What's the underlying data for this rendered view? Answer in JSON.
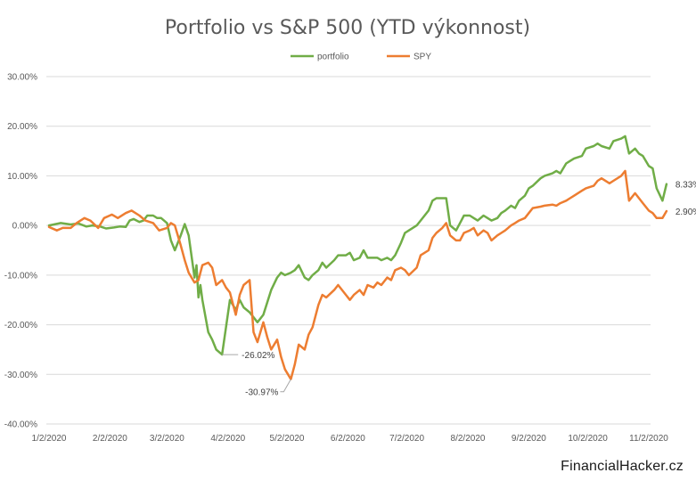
{
  "watermark": "FinancialHacker.cz",
  "chart_data": {
    "type": "line",
    "title": "Portfolio vs S&P 500 (YTD výkonnost)",
    "xlabel": "",
    "ylabel": "",
    "ylim": [
      -40,
      30
    ],
    "y_ticks": [
      30,
      20,
      10,
      0,
      -10,
      -20,
      -30,
      -40
    ],
    "y_tick_labels": [
      "30.00%",
      "20.00%",
      "10.00%",
      "0.00%",
      "-10.00%",
      "-20.00%",
      "-30.00%",
      "-40.00%"
    ],
    "x_tick_labels": [
      "1/2/2020",
      "2/2/2020",
      "3/2/2020",
      "4/2/2020",
      "5/2/2020",
      "6/2/2020",
      "7/2/2020",
      "8/2/2020",
      "9/2/2020",
      "10/2/2020",
      "11/2/2020"
    ],
    "x_tick_dates": [
      "2020-01-02",
      "2020-02-02",
      "2020-03-02",
      "2020-04-02",
      "2020-05-02",
      "2020-06-02",
      "2020-07-02",
      "2020-08-02",
      "2020-09-02",
      "2020-10-02",
      "2020-11-02"
    ],
    "xlim": [
      "2020-01-02",
      "2020-11-12"
    ],
    "grid": "horizontal",
    "legend_position": "top-center",
    "series": [
      {
        "name": "portfolio",
        "color": "#70AD47",
        "points": [
          [
            "2020-01-02",
            0.0
          ],
          [
            "2020-01-08",
            0.5
          ],
          [
            "2020-01-13",
            0.2
          ],
          [
            "2020-01-17",
            0.4
          ],
          [
            "2020-01-21",
            -0.2
          ],
          [
            "2020-01-24",
            0.0
          ],
          [
            "2020-01-28",
            -0.2
          ],
          [
            "2020-01-31",
            -0.6
          ],
          [
            "2020-02-04",
            -0.4
          ],
          [
            "2020-02-07",
            -0.2
          ],
          [
            "2020-02-10",
            -0.3
          ],
          [
            "2020-02-12",
            1.0
          ],
          [
            "2020-02-14",
            1.3
          ],
          [
            "2020-02-17",
            0.7
          ],
          [
            "2020-02-19",
            1.0
          ],
          [
            "2020-02-21",
            2.0
          ],
          [
            "2020-02-24",
            2.0
          ],
          [
            "2020-02-26",
            1.5
          ],
          [
            "2020-02-28",
            1.5
          ],
          [
            "2020-03-02",
            0.5
          ],
          [
            "2020-03-04",
            -3.0
          ],
          [
            "2020-03-06",
            -5.0
          ],
          [
            "2020-03-09",
            -2.0
          ],
          [
            "2020-03-11",
            0.3
          ],
          [
            "2020-03-13",
            -2.0
          ],
          [
            "2020-03-16",
            -10.5
          ],
          [
            "2020-03-17",
            -8.0
          ],
          [
            "2020-03-18",
            -14.5
          ],
          [
            "2020-03-19",
            -12.0
          ],
          [
            "2020-03-20",
            -15.0
          ],
          [
            "2020-03-23",
            -21.5
          ],
          [
            "2020-03-25",
            -23.0
          ],
          [
            "2020-03-27",
            -25.0
          ],
          [
            "2020-03-30",
            -26.02
          ],
          [
            "2020-04-01",
            -20.5
          ],
          [
            "2020-04-03",
            -15.0
          ],
          [
            "2020-04-06",
            -17.0
          ],
          [
            "2020-04-08",
            -15.0
          ],
          [
            "2020-04-10",
            -16.5
          ],
          [
            "2020-04-13",
            -17.5
          ],
          [
            "2020-04-15",
            -18.5
          ],
          [
            "2020-04-17",
            -19.5
          ],
          [
            "2020-04-20",
            -18.0
          ],
          [
            "2020-04-22",
            -15.5
          ],
          [
            "2020-04-24",
            -13.0
          ],
          [
            "2020-04-27",
            -10.5
          ],
          [
            "2020-04-29",
            -9.5
          ],
          [
            "2020-05-01",
            -10.0
          ],
          [
            "2020-05-04",
            -9.5
          ],
          [
            "2020-05-06",
            -9.0
          ],
          [
            "2020-05-08",
            -8.0
          ],
          [
            "2020-05-11",
            -10.5
          ],
          [
            "2020-05-13",
            -11.0
          ],
          [
            "2020-05-15",
            -10.0
          ],
          [
            "2020-05-18",
            -9.0
          ],
          [
            "2020-05-20",
            -7.5
          ],
          [
            "2020-05-22",
            -8.5
          ],
          [
            "2020-05-26",
            -7.0
          ],
          [
            "2020-05-28",
            -6.0
          ],
          [
            "2020-06-01",
            -6.0
          ],
          [
            "2020-06-03",
            -5.5
          ],
          [
            "2020-06-05",
            -7.0
          ],
          [
            "2020-06-08",
            -6.5
          ],
          [
            "2020-06-10",
            -5.0
          ],
          [
            "2020-06-12",
            -6.5
          ],
          [
            "2020-06-15",
            -6.5
          ],
          [
            "2020-06-17",
            -6.5
          ],
          [
            "2020-06-19",
            -7.0
          ],
          [
            "2020-06-22",
            -6.5
          ],
          [
            "2020-06-24",
            -7.0
          ],
          [
            "2020-06-26",
            -6.0
          ],
          [
            "2020-06-29",
            -3.5
          ],
          [
            "2020-07-01",
            -1.5
          ],
          [
            "2020-07-03",
            -1.0
          ],
          [
            "2020-07-07",
            0.0
          ],
          [
            "2020-07-09",
            1.0
          ],
          [
            "2020-07-13",
            3.0
          ],
          [
            "2020-07-15",
            5.0
          ],
          [
            "2020-07-17",
            5.5
          ],
          [
            "2020-07-20",
            5.5
          ],
          [
            "2020-07-22",
            5.5
          ],
          [
            "2020-07-24",
            0.0
          ],
          [
            "2020-07-27",
            -1.0
          ],
          [
            "2020-07-29",
            0.5
          ],
          [
            "2020-07-31",
            2.0
          ],
          [
            "2020-08-03",
            2.0
          ],
          [
            "2020-08-05",
            1.5
          ],
          [
            "2020-08-07",
            1.0
          ],
          [
            "2020-08-10",
            2.0
          ],
          [
            "2020-08-12",
            1.5
          ],
          [
            "2020-08-14",
            1.0
          ],
          [
            "2020-08-17",
            1.5
          ],
          [
            "2020-08-19",
            2.5
          ],
          [
            "2020-08-21",
            3.0
          ],
          [
            "2020-08-24",
            4.0
          ],
          [
            "2020-08-26",
            3.5
          ],
          [
            "2020-08-28",
            5.0
          ],
          [
            "2020-08-31",
            6.0
          ],
          [
            "2020-09-02",
            7.5
          ],
          [
            "2020-09-04",
            8.0
          ],
          [
            "2020-09-08",
            9.5
          ],
          [
            "2020-09-10",
            10.0
          ],
          [
            "2020-09-14",
            10.5
          ],
          [
            "2020-09-16",
            11.0
          ],
          [
            "2020-09-18",
            10.5
          ],
          [
            "2020-09-21",
            12.5
          ],
          [
            "2020-09-23",
            13.0
          ],
          [
            "2020-09-25",
            13.5
          ],
          [
            "2020-09-29",
            14.0
          ],
          [
            "2020-10-01",
            15.5
          ],
          [
            "2020-10-05",
            16.0
          ],
          [
            "2020-10-07",
            16.5
          ],
          [
            "2020-10-09",
            16.0
          ],
          [
            "2020-10-13",
            15.5
          ],
          [
            "2020-10-15",
            17.0
          ],
          [
            "2020-10-19",
            17.5
          ],
          [
            "2020-10-21",
            18.0
          ],
          [
            "2020-10-23",
            14.5
          ],
          [
            "2020-10-26",
            15.5
          ],
          [
            "2020-10-28",
            14.5
          ],
          [
            "2020-10-30",
            14.0
          ],
          [
            "2020-11-02",
            12.0
          ],
          [
            "2020-11-04",
            11.5
          ],
          [
            "2020-11-06",
            7.5
          ],
          [
            "2020-11-09",
            5.0
          ],
          [
            "2020-11-11",
            8.33
          ]
        ]
      },
      {
        "name": "SPY",
        "color": "#ED7D31",
        "points": [
          [
            "2020-01-02",
            -0.3
          ],
          [
            "2020-01-06",
            -1.0
          ],
          [
            "2020-01-09",
            -0.5
          ],
          [
            "2020-01-13",
            -0.5
          ],
          [
            "2020-01-16",
            0.5
          ],
          [
            "2020-01-20",
            1.5
          ],
          [
            "2020-01-23",
            1.0
          ],
          [
            "2020-01-27",
            -0.5
          ],
          [
            "2020-01-30",
            1.5
          ],
          [
            "2020-02-03",
            2.2
          ],
          [
            "2020-02-06",
            1.5
          ],
          [
            "2020-02-10",
            2.5
          ],
          [
            "2020-02-13",
            3.0
          ],
          [
            "2020-02-17",
            2.0
          ],
          [
            "2020-02-20",
            1.0
          ],
          [
            "2020-02-24",
            0.5
          ],
          [
            "2020-02-27",
            -1.0
          ],
          [
            "2020-03-02",
            -0.5
          ],
          [
            "2020-03-04",
            0.5
          ],
          [
            "2020-03-06",
            0.0
          ],
          [
            "2020-03-09",
            -4.0
          ],
          [
            "2020-03-11",
            -7.0
          ],
          [
            "2020-03-13",
            -9.5
          ],
          [
            "2020-03-16",
            -11.5
          ],
          [
            "2020-03-18",
            -11.0
          ],
          [
            "2020-03-20",
            -8.0
          ],
          [
            "2020-03-23",
            -7.5
          ],
          [
            "2020-03-25",
            -8.5
          ],
          [
            "2020-03-27",
            -12.0
          ],
          [
            "2020-03-30",
            -11.0
          ],
          [
            "2020-04-01",
            -12.5
          ],
          [
            "2020-04-03",
            -13.5
          ],
          [
            "2020-04-06",
            -18.0
          ],
          [
            "2020-04-08",
            -14.0
          ],
          [
            "2020-04-10",
            -12.0
          ],
          [
            "2020-04-13",
            -11.0
          ],
          [
            "2020-04-15",
            -21.5
          ],
          [
            "2020-04-17",
            -23.5
          ],
          [
            "2020-04-20",
            -19.5
          ],
          [
            "2020-04-22",
            -22.5
          ],
          [
            "2020-04-24",
            -25.0
          ],
          [
            "2020-04-27",
            -23.0
          ],
          [
            "2020-04-29",
            -26.5
          ],
          [
            "2020-05-01",
            -29.0
          ],
          [
            "2020-05-04",
            -30.97
          ],
          [
            "2020-05-06",
            -28.0
          ],
          [
            "2020-05-08",
            -24.0
          ],
          [
            "2020-05-11",
            -25.0
          ],
          [
            "2020-05-13",
            -22.0
          ],
          [
            "2020-05-15",
            -20.5
          ],
          [
            "2020-05-18",
            -16.0
          ],
          [
            "2020-05-20",
            -14.0
          ],
          [
            "2020-05-22",
            -14.5
          ],
          [
            "2020-05-26",
            -13.0
          ],
          [
            "2020-05-28",
            -12.0
          ],
          [
            "2020-06-01",
            -14.0
          ],
          [
            "2020-06-03",
            -15.0
          ],
          [
            "2020-06-05",
            -14.0
          ],
          [
            "2020-06-08",
            -13.0
          ],
          [
            "2020-06-10",
            -14.0
          ],
          [
            "2020-06-12",
            -12.0
          ],
          [
            "2020-06-15",
            -12.5
          ],
          [
            "2020-06-17",
            -11.5
          ],
          [
            "2020-06-19",
            -12.0
          ],
          [
            "2020-06-22",
            -10.5
          ],
          [
            "2020-06-24",
            -11.0
          ],
          [
            "2020-06-26",
            -9.0
          ],
          [
            "2020-06-29",
            -8.5
          ],
          [
            "2020-07-01",
            -9.0
          ],
          [
            "2020-07-03",
            -10.0
          ],
          [
            "2020-07-07",
            -8.5
          ],
          [
            "2020-07-09",
            -6.0
          ],
          [
            "2020-07-13",
            -5.0
          ],
          [
            "2020-07-15",
            -2.5
          ],
          [
            "2020-07-17",
            -1.5
          ],
          [
            "2020-07-20",
            -0.5
          ],
          [
            "2020-07-22",
            0.5
          ],
          [
            "2020-07-24",
            -2.0
          ],
          [
            "2020-07-27",
            -3.0
          ],
          [
            "2020-07-29",
            -3.0
          ],
          [
            "2020-07-31",
            -1.5
          ],
          [
            "2020-08-03",
            -1.0
          ],
          [
            "2020-08-05",
            -0.5
          ],
          [
            "2020-08-07",
            -2.0
          ],
          [
            "2020-08-10",
            -1.0
          ],
          [
            "2020-08-12",
            -1.5
          ],
          [
            "2020-08-14",
            -3.0
          ],
          [
            "2020-08-17",
            -2.0
          ],
          [
            "2020-08-19",
            -1.5
          ],
          [
            "2020-08-21",
            -1.0
          ],
          [
            "2020-08-24",
            0.0
          ],
          [
            "2020-08-26",
            0.5
          ],
          [
            "2020-08-28",
            1.0
          ],
          [
            "2020-08-31",
            1.5
          ],
          [
            "2020-09-02",
            2.5
          ],
          [
            "2020-09-04",
            3.5
          ],
          [
            "2020-09-08",
            3.8
          ],
          [
            "2020-09-10",
            4.0
          ],
          [
            "2020-09-14",
            4.2
          ],
          [
            "2020-09-16",
            4.0
          ],
          [
            "2020-09-18",
            4.5
          ],
          [
            "2020-09-21",
            5.0
          ],
          [
            "2020-09-23",
            5.5
          ],
          [
            "2020-09-25",
            6.0
          ],
          [
            "2020-09-29",
            7.0
          ],
          [
            "2020-10-01",
            7.5
          ],
          [
            "2020-10-05",
            8.0
          ],
          [
            "2020-10-07",
            9.0
          ],
          [
            "2020-10-09",
            9.5
          ],
          [
            "2020-10-13",
            8.5
          ],
          [
            "2020-10-15",
            9.0
          ],
          [
            "2020-10-19",
            10.0
          ],
          [
            "2020-10-21",
            11.0
          ],
          [
            "2020-10-23",
            5.0
          ],
          [
            "2020-10-26",
            6.5
          ],
          [
            "2020-10-28",
            5.5
          ],
          [
            "2020-10-30",
            4.5
          ],
          [
            "2020-11-02",
            3.0
          ],
          [
            "2020-11-04",
            2.5
          ],
          [
            "2020-11-06",
            1.5
          ],
          [
            "2020-11-09",
            1.5
          ],
          [
            "2020-11-11",
            2.9
          ]
        ]
      }
    ],
    "annotations": [
      {
        "series": "portfolio",
        "date": "2020-03-30",
        "value": -26.02,
        "text": "-26.02%"
      },
      {
        "series": "SPY",
        "date": "2020-05-04",
        "value": -30.97,
        "text": "-30.97%"
      },
      {
        "series": "portfolio",
        "date": "2020-11-11",
        "value": 8.33,
        "text": "8.33%"
      },
      {
        "series": "SPY",
        "date": "2020-11-11",
        "value": 2.9,
        "text": "2.90%"
      }
    ]
  }
}
